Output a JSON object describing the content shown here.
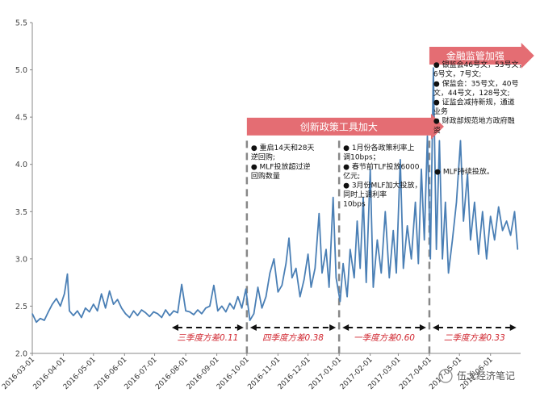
{
  "chart_data": {
    "type": "line",
    "ylim": [
      2.0,
      5.5
    ],
    "yticks": [
      "2.0",
      "2.5",
      "3.0",
      "3.5",
      "4.0",
      "4.5",
      "5.0",
      "5.5"
    ],
    "x_tick_labels": [
      "2016-03-01",
      "2016-04-01",
      "2016-05-01",
      "2016-06-01",
      "2016-07-01",
      "2016-08-01",
      "2016-09-01",
      "2016-10-01",
      "2016-11-01",
      "2016-12-01",
      "2017-01-01",
      "2017-02-01",
      "2017-03-01",
      "2017-04-01",
      "2017-05-01",
      "2017-06-01"
    ],
    "x_start": "2016-03-01",
    "grid": false,
    "legend": "none",
    "line_color": "#4a7fb5",
    "series": [
      {
        "name": "",
        "points": [
          [
            "2016-03-01",
            2.42
          ],
          [
            "2016-03-05",
            2.33
          ],
          [
            "2016-03-09",
            2.37
          ],
          [
            "2016-03-13",
            2.35
          ],
          [
            "2016-03-17",
            2.44
          ],
          [
            "2016-03-21",
            2.52
          ],
          [
            "2016-03-25",
            2.58
          ],
          [
            "2016-03-29",
            2.5
          ],
          [
            "2016-04-02",
            2.63
          ],
          [
            "2016-04-05",
            2.84
          ],
          [
            "2016-04-07",
            2.45
          ],
          [
            "2016-04-11",
            2.4
          ],
          [
            "2016-04-15",
            2.45
          ],
          [
            "2016-04-19",
            2.38
          ],
          [
            "2016-04-23",
            2.48
          ],
          [
            "2016-04-27",
            2.44
          ],
          [
            "2016-05-01",
            2.52
          ],
          [
            "2016-05-05",
            2.45
          ],
          [
            "2016-05-09",
            2.63
          ],
          [
            "2016-05-13",
            2.48
          ],
          [
            "2016-05-17",
            2.66
          ],
          [
            "2016-05-21",
            2.52
          ],
          [
            "2016-05-25",
            2.57
          ],
          [
            "2016-05-29",
            2.48
          ],
          [
            "2016-06-02",
            2.42
          ],
          [
            "2016-06-06",
            2.38
          ],
          [
            "2016-06-10",
            2.45
          ],
          [
            "2016-06-14",
            2.4
          ],
          [
            "2016-06-18",
            2.46
          ],
          [
            "2016-06-22",
            2.43
          ],
          [
            "2016-06-26",
            2.39
          ],
          [
            "2016-06-30",
            2.44
          ],
          [
            "2016-07-04",
            2.42
          ],
          [
            "2016-07-08",
            2.38
          ],
          [
            "2016-07-12",
            2.46
          ],
          [
            "2016-07-16",
            2.4
          ],
          [
            "2016-07-20",
            2.45
          ],
          [
            "2016-07-24",
            2.43
          ],
          [
            "2016-07-28",
            2.73
          ],
          [
            "2016-08-01",
            2.45
          ],
          [
            "2016-08-05",
            2.44
          ],
          [
            "2016-08-09",
            2.41
          ],
          [
            "2016-08-13",
            2.46
          ],
          [
            "2016-08-17",
            2.42
          ],
          [
            "2016-08-21",
            2.48
          ],
          [
            "2016-08-25",
            2.5
          ],
          [
            "2016-08-29",
            2.72
          ],
          [
            "2016-09-02",
            2.45
          ],
          [
            "2016-09-06",
            2.5
          ],
          [
            "2016-09-10",
            2.44
          ],
          [
            "2016-09-14",
            2.53
          ],
          [
            "2016-09-18",
            2.47
          ],
          [
            "2016-09-22",
            2.6
          ],
          [
            "2016-09-26",
            2.48
          ],
          [
            "2016-09-30",
            2.68
          ],
          [
            "2016-10-04",
            2.35
          ],
          [
            "2016-10-08",
            2.42
          ],
          [
            "2016-10-12",
            2.7
          ],
          [
            "2016-10-16",
            2.48
          ],
          [
            "2016-10-20",
            2.6
          ],
          [
            "2016-10-24",
            2.85
          ],
          [
            "2016-10-28",
            3.0
          ],
          [
            "2016-11-01",
            2.65
          ],
          [
            "2016-11-05",
            2.72
          ],
          [
            "2016-11-09",
            2.95
          ],
          [
            "2016-11-12",
            3.22
          ],
          [
            "2016-11-15",
            2.8
          ],
          [
            "2016-11-19",
            2.9
          ],
          [
            "2016-11-23",
            2.6
          ],
          [
            "2016-11-27",
            2.78
          ],
          [
            "2016-12-01",
            3.05
          ],
          [
            "2016-12-04",
            2.7
          ],
          [
            "2016-12-08",
            2.9
          ],
          [
            "2016-12-12",
            3.48
          ],
          [
            "2016-12-15",
            2.85
          ],
          [
            "2016-12-19",
            3.1
          ],
          [
            "2016-12-22",
            2.7
          ],
          [
            "2016-12-26",
            3.65
          ],
          [
            "2016-12-29",
            2.8
          ],
          [
            "2017-01-02",
            2.55
          ],
          [
            "2017-01-05",
            2.95
          ],
          [
            "2017-01-09",
            2.6
          ],
          [
            "2017-01-12",
            3.1
          ],
          [
            "2017-01-16",
            2.8
          ],
          [
            "2017-01-19",
            3.4
          ],
          [
            "2017-01-22",
            2.9
          ],
          [
            "2017-01-25",
            3.65
          ],
          [
            "2017-01-28",
            2.75
          ],
          [
            "2017-02-01",
            3.95
          ],
          [
            "2017-02-04",
            2.7
          ],
          [
            "2017-02-08",
            3.2
          ],
          [
            "2017-02-12",
            2.85
          ],
          [
            "2017-02-16",
            3.5
          ],
          [
            "2017-02-20",
            2.8
          ],
          [
            "2017-02-24",
            3.3
          ],
          [
            "2017-02-27",
            2.85
          ],
          [
            "2017-03-03",
            4.05
          ],
          [
            "2017-03-06",
            2.9
          ],
          [
            "2017-03-10",
            3.35
          ],
          [
            "2017-03-14",
            3.0
          ],
          [
            "2017-03-18",
            3.6
          ],
          [
            "2017-03-21",
            2.95
          ],
          [
            "2017-03-24",
            3.95
          ],
          [
            "2017-03-27",
            3.2
          ],
          [
            "2017-03-30",
            4.3
          ],
          [
            "2017-04-02",
            3.0
          ],
          [
            "2017-04-05",
            5.02
          ],
          [
            "2017-04-08",
            3.1
          ],
          [
            "2017-04-11",
            4.25
          ],
          [
            "2017-04-14",
            3.0
          ],
          [
            "2017-04-17",
            3.6
          ],
          [
            "2017-04-20",
            2.85
          ],
          [
            "2017-04-24",
            3.2
          ],
          [
            "2017-04-28",
            3.6
          ],
          [
            "2017-05-02",
            4.25
          ],
          [
            "2017-05-05",
            3.4
          ],
          [
            "2017-05-09",
            3.9
          ],
          [
            "2017-05-12",
            3.2
          ],
          [
            "2017-05-16",
            3.6
          ],
          [
            "2017-05-20",
            3.05
          ],
          [
            "2017-05-24",
            3.5
          ],
          [
            "2017-05-28",
            3.0
          ],
          [
            "2017-06-01",
            3.45
          ],
          [
            "2017-06-05",
            3.2
          ],
          [
            "2017-06-09",
            3.55
          ],
          [
            "2017-06-13",
            3.3
          ],
          [
            "2017-06-17",
            3.4
          ],
          [
            "2017-06-21",
            3.25
          ],
          [
            "2017-06-25",
            3.5
          ],
          [
            "2017-06-28",
            3.1
          ]
        ]
      }
    ]
  },
  "dividers": [
    "2016-10-01",
    "2017-01-01",
    "2017-04-01"
  ],
  "banners": [
    {
      "label": "创新政策工具加大",
      "x_start": "2016-10-01",
      "x_end": "2017-04-01",
      "y": 4.4
    },
    {
      "label": "金融监管加强",
      "x_start": "2017-04-01",
      "x_end": "2017-06-30",
      "y": 5.15
    }
  ],
  "notes": [
    {
      "x": "2016-10-05",
      "y": 4.15,
      "lines": [
        [
          "● ",
          "重启14天和28天"
        ],
        [
          "",
          "逆回购;"
        ],
        [
          "● ",
          "MLF投放超过逆"
        ],
        [
          "",
          "回购数量"
        ]
      ]
    },
    {
      "x": "2017-01-05",
      "y": 4.15,
      "lines": [
        [
          "● ",
          "1月份各政策利率上"
        ],
        [
          "",
          "调10bps；"
        ],
        [
          "● ",
          "春节前TLF投放6000"
        ],
        [
          "",
          "亿元;"
        ],
        [
          "● ",
          "3月份MLF加大投放，"
        ],
        [
          "",
          "同时上调利率"
        ],
        [
          "",
          "10bps"
        ]
      ]
    },
    {
      "x": "2017-04-05",
      "y": 5.03,
      "lines": [
        [
          "● ",
          "银监会46号文，53号文，"
        ],
        [
          "",
          "6号文，7号文;"
        ],
        [
          "● ",
          "保监会：35号文，40号"
        ],
        [
          "",
          "文，44号文，128号文;"
        ],
        [
          "● ",
          "证监会减持新规，通道"
        ],
        [
          "",
          "业务"
        ],
        [
          "● ",
          "财政部规范地方政府融"
        ],
        [
          "",
          "资"
        ]
      ]
    },
    {
      "x": "2017-04-06",
      "y": 3.9,
      "lines": [
        [
          "● ",
          "MLF持续投放。"
        ]
      ]
    }
  ],
  "periods": [
    {
      "label": "三季度方差0.11",
      "x_start": "2016-07-15",
      "x_end": "2016-10-01",
      "y": 2.23
    },
    {
      "label": "四季度方差0.38",
      "x_start": "2016-10-01",
      "x_end": "2017-01-01",
      "y": 2.23
    },
    {
      "label": "一季度方差0.60",
      "x_start": "2017-01-01",
      "x_end": "2017-04-01",
      "y": 2.23
    },
    {
      "label": "二季度方差0.33",
      "x_start": "2017-04-01",
      "x_end": "2017-06-30",
      "y": 2.23
    }
  ],
  "colors": {
    "banner": "#e46d73",
    "divider": "#888888",
    "period_text": "#d0262f",
    "axis": "#888888"
  },
  "watermark": "伍戈经济笔记"
}
